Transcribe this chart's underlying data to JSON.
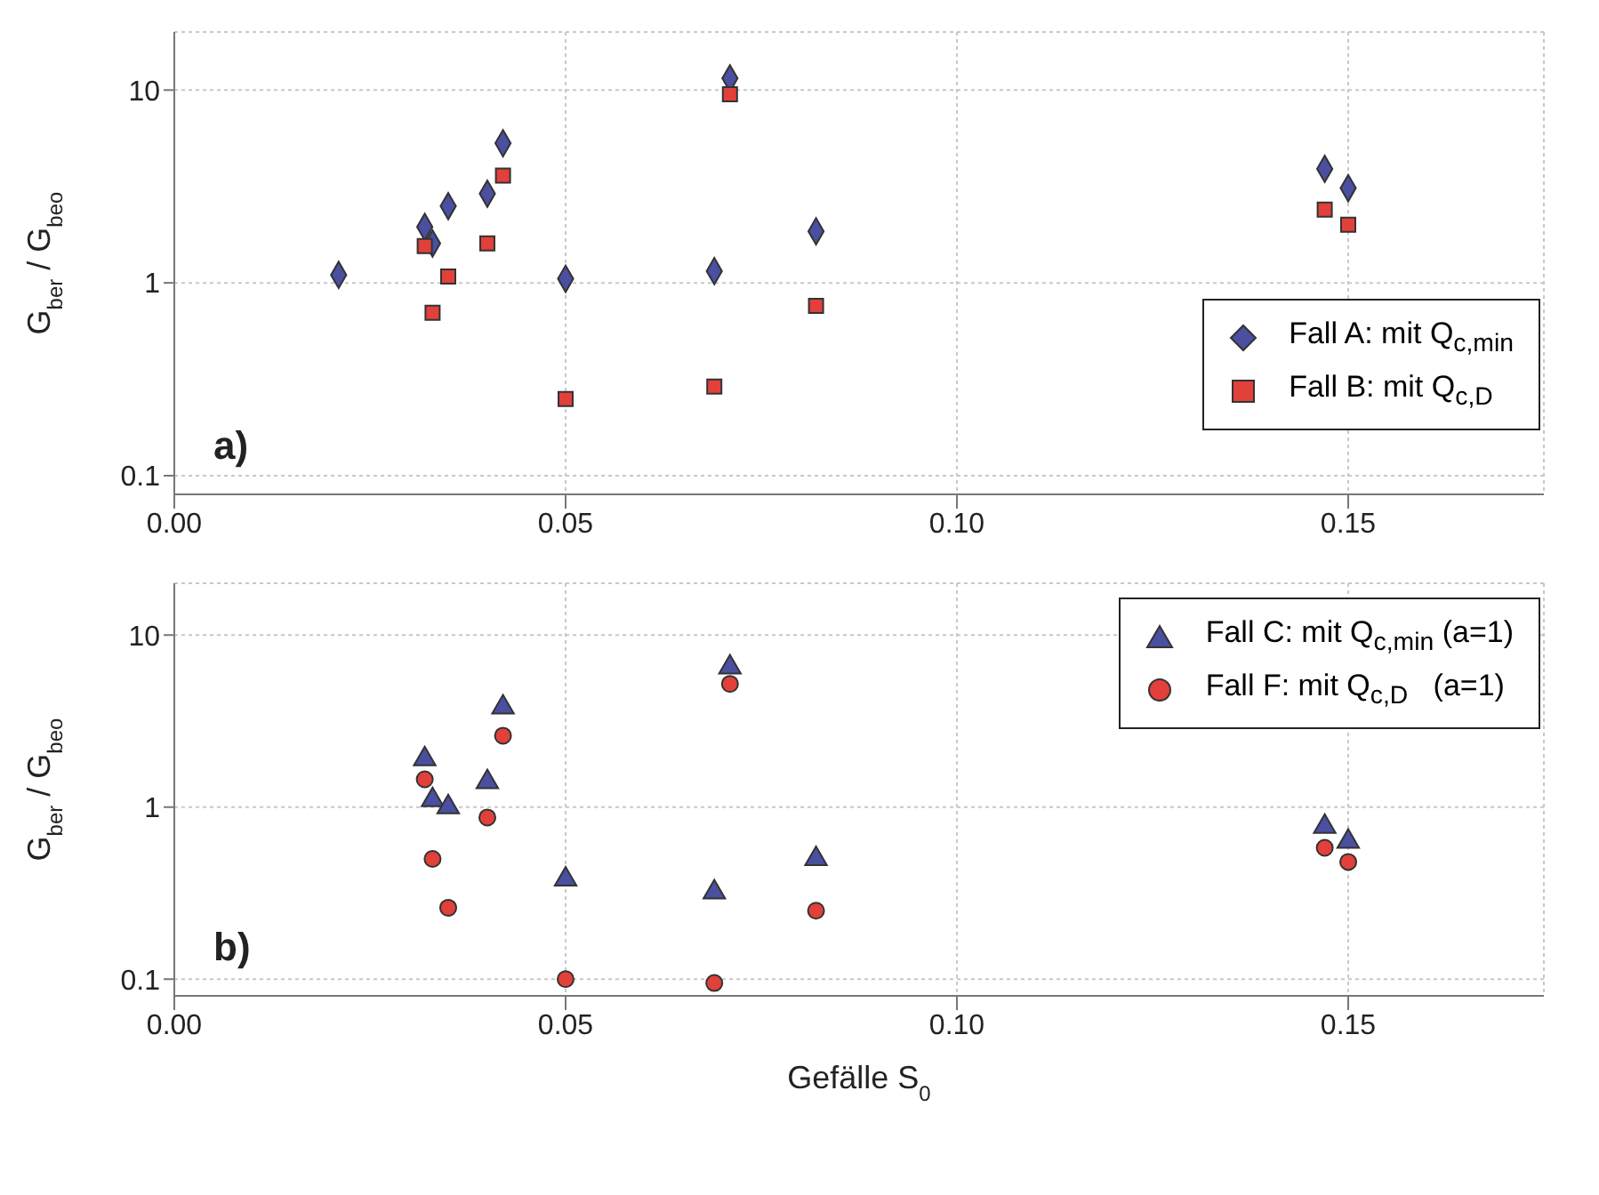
{
  "chart_data": [
    {
      "type": "scatter",
      "ylabel": "G$_{ber}$ / G$_{beo}$",
      "annotations": [
        "a)"
      ],
      "log": "y",
      "grid": true,
      "legend": "bottom right",
      "xlim": [
        0,
        0.175
      ],
      "xticks": [
        {
          "value": 0,
          "label": "0.00"
        },
        {
          "value": 0.05,
          "label": "0.05"
        },
        {
          "value": 0.1,
          "label": "0.10"
        },
        0.15
      ],
      "ylim": [
        0.08,
        20
      ],
      "yticks": [
        0.1,
        1,
        10
      ],
      "series": [
        {
          "name": "Fall A: mit Q$_{c,min}$",
          "color": "#4a4fa0",
          "marker": "diamond",
          "x": [
            0.021,
            0.032,
            0.033,
            0.035,
            0.04,
            0.042,
            0.05,
            0.069,
            0.071,
            0.082,
            0.147,
            0.15
          ],
          "values": [
            1.1,
            1.95,
            1.6,
            2.5,
            2.9,
            5.3,
            1.05,
            1.15,
            11.5,
            1.85,
            3.9,
            3.1
          ]
        },
        {
          "name": "Fall B: mit Q$_{c,D}$",
          "color": "#e2403a",
          "marker": "square",
          "x": [
            0.032,
            0.033,
            0.035,
            0.04,
            0.042,
            0.05,
            0.069,
            0.071,
            0.082,
            0.147,
            0.15
          ],
          "values": [
            1.55,
            0.7,
            1.08,
            1.6,
            3.6,
            0.25,
            0.29,
            9.5,
            0.76,
            2.4,
            2.0
          ]
        }
      ]
    },
    {
      "type": "scatter",
      "ylabel": "G$_{ber}$ / G$_{beo}$",
      "xlabel": "Gefälle S$_{0}$",
      "annotations": [
        "b)"
      ],
      "log": "y",
      "grid": true,
      "legend": "top right",
      "xlim": [
        0,
        0.175
      ],
      "xticks": [
        {
          "value": 0,
          "label": "0.00"
        },
        {
          "value": 0.05,
          "label": "0.05"
        },
        {
          "value": 0.1,
          "label": "0.10"
        },
        0.15
      ],
      "ylim": [
        0.08,
        20
      ],
      "yticks": [
        0.1,
        1,
        10
      ],
      "series": [
        {
          "name": "Fall C: mit Q$_{c,min}$ (a=1)",
          "color": "#4a4fa0",
          "marker": "triangle",
          "x": [
            0.032,
            0.033,
            0.035,
            0.04,
            0.042,
            0.05,
            0.069,
            0.071,
            0.082,
            0.147,
            0.15
          ],
          "values": [
            1.9,
            1.1,
            1.0,
            1.4,
            3.8,
            0.38,
            0.32,
            6.5,
            0.5,
            0.77,
            0.63
          ]
        },
        {
          "name": "Fall F: mit Q$_{c,D}$   (a=1)",
          "color": "#e2403a",
          "marker": "circle",
          "x": [
            0.032,
            0.033,
            0.035,
            0.04,
            0.042,
            0.05,
            0.069,
            0.071,
            0.082,
            0.147,
            0.15
          ],
          "values": [
            1.45,
            0.5,
            0.26,
            0.87,
            2.6,
            0.1,
            0.095,
            5.2,
            0.25,
            0.58,
            0.48
          ]
        }
      ]
    }
  ]
}
